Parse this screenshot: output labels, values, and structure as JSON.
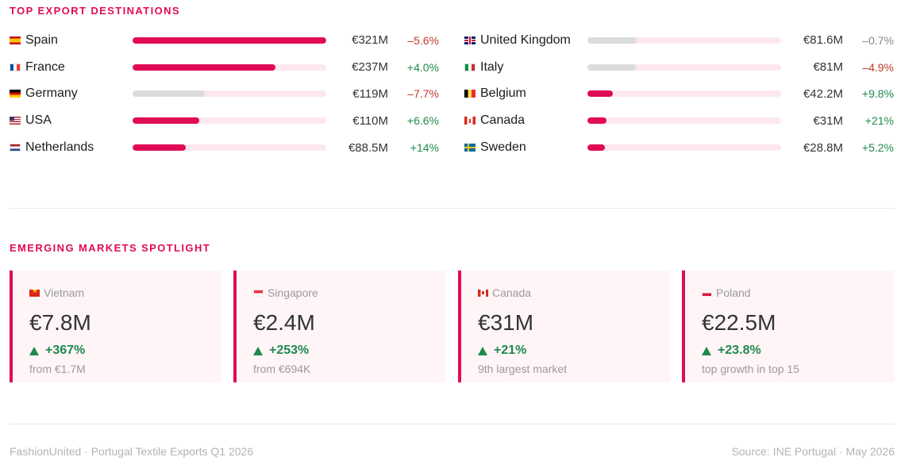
{
  "sections": {
    "top_title": "TOP EXPORT DESTINATIONS",
    "emerging_title": "EMERGING MARKETS SPOTLIGHT"
  },
  "colors": {
    "accent": "#e00b56",
    "positive": "#1e8a4c",
    "negative": "#c0392b",
    "neutral": "#888888"
  },
  "destinations_left": [
    {
      "country": "Spain",
      "flag_icon": "spain-flag-icon",
      "value": "€321M",
      "delta": "–5.6%",
      "trend": "down",
      "bar_share": 1.0
    },
    {
      "country": "France",
      "flag_icon": "france-flag-icon",
      "value": "€237M",
      "delta": "+4.0%",
      "trend": "up",
      "bar_share": 0.738
    },
    {
      "country": "Germany",
      "flag_icon": "germany-flag-icon",
      "value": "€119M",
      "delta": "–7.7%",
      "trend": "down",
      "bar_share": 0.371
    },
    {
      "country": "USA",
      "flag_icon": "usa-flag-icon",
      "value": "€110M",
      "delta": "+6.6%",
      "trend": "up",
      "bar_share": 0.343
    },
    {
      "country": "Netherlands",
      "flag_icon": "netherlands-flag-icon",
      "value": "€88.5M",
      "delta": "+14%",
      "trend": "up",
      "bar_share": 0.276
    }
  ],
  "destinations_right": [
    {
      "country": "United Kingdom",
      "flag_icon": "uk-flag-icon",
      "value": "€81.6M",
      "delta": "–0.7%",
      "trend": "flat",
      "bar_share": 0.254
    },
    {
      "country": "Italy",
      "flag_icon": "italy-flag-icon",
      "value": "€81M",
      "delta": "–4.9%",
      "trend": "down",
      "bar_share": 0.252
    },
    {
      "country": "Belgium",
      "flag_icon": "belgium-flag-icon",
      "value": "€42.2M",
      "delta": "+9.8%",
      "trend": "up",
      "bar_share": 0.131
    },
    {
      "country": "Canada",
      "flag_icon": "canada-flag-icon",
      "value": "€31M",
      "delta": "+21%",
      "trend": "up",
      "bar_share": 0.097
    },
    {
      "country": "Sweden",
      "flag_icon": "sweden-flag-icon",
      "value": "€28.8M",
      "delta": "+5.2%",
      "trend": "up",
      "bar_share": 0.09
    }
  ],
  "emerging": [
    {
      "country": "Vietnam",
      "flag_icon": "vietnam-flag-icon",
      "value": "€7.8M",
      "delta": "+367%",
      "note": "from €1.7M"
    },
    {
      "country": "Singapore",
      "flag_icon": "singapore-flag-icon",
      "value": "€2.4M",
      "delta": "+253%",
      "note": "from €694K"
    },
    {
      "country": "Canada",
      "flag_icon": "canada-flag-icon",
      "value": "€31M",
      "delta": "+21%",
      "note": "9th largest market"
    },
    {
      "country": "Poland",
      "flag_icon": "poland-flag-icon",
      "value": "€22.5M",
      "delta": "+23.8%",
      "note": "top growth in top 15"
    }
  ],
  "footer": {
    "left": "FashionUnited · Portugal Textile Exports Q1 2026",
    "right": "Source: INE Portugal · May 2026"
  }
}
